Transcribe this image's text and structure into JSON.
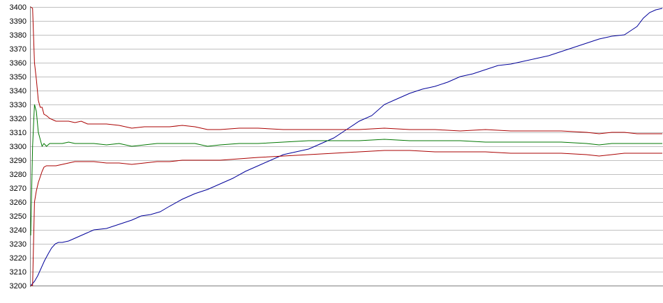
{
  "chart_data": {
    "type": "line",
    "title": "",
    "xlabel": "",
    "ylabel": "",
    "ylim": [
      3200,
      3400
    ],
    "yticks": [
      3200,
      3210,
      3220,
      3230,
      3240,
      3250,
      3260,
      3270,
      3280,
      3290,
      3300,
      3310,
      3320,
      3330,
      3340,
      3350,
      3360,
      3370,
      3380,
      3390,
      3400
    ],
    "y_tick_labels": [
      "3200",
      "3210",
      "3220",
      "3230",
      "3240",
      "3250",
      "3260",
      "3270",
      "3280",
      "3290",
      "3300",
      "3310",
      "3320",
      "3330",
      "3340",
      "3350",
      "3360",
      "3370",
      "3380",
      "3390",
      "3400"
    ],
    "xlim": [
      0,
      100
    ],
    "grid": "horizontal",
    "legend": "none",
    "colors": {
      "background": "#ffffff",
      "gridline": "#c0c0c0",
      "axis": "#808080",
      "blue_line": "#000099",
      "green_line": "#007700",
      "red_lines": "#aa0000"
    },
    "series": [
      {
        "color": "#000099",
        "x": [
          0,
          0.6,
          1.1,
          1.6,
          2.2,
          2.8,
          3.3,
          3.9,
          4.4,
          5,
          6,
          7,
          8,
          9,
          10,
          12,
          14,
          16,
          17.5,
          19,
          20.5,
          22,
          24,
          26,
          28,
          30,
          32,
          34,
          36,
          38,
          40,
          42,
          44,
          46,
          48,
          50,
          52,
          54,
          56,
          58,
          60,
          62,
          64,
          66,
          68,
          70,
          72,
          74,
          76,
          78,
          80,
          82,
          84,
          86,
          88,
          90,
          92,
          94,
          95,
          96,
          97,
          98,
          99,
          100
        ],
        "y": [
          3200,
          3203,
          3207,
          3212,
          3218,
          3223,
          3227,
          3230,
          3231,
          3231,
          3232,
          3234,
          3236,
          3238,
          3240,
          3241,
          3244,
          3247,
          3250,
          3251,
          3253,
          3257,
          3262,
          3266,
          3269,
          3273,
          3277,
          3282,
          3286,
          3290,
          3294,
          3296,
          3298,
          3302,
          3306,
          3312,
          3318,
          3322,
          3330,
          3334,
          3338,
          3341,
          3343,
          3346,
          3350,
          3352,
          3355,
          3358,
          3359,
          3361,
          3363,
          3365,
          3368,
          3371,
          3374,
          3377,
          3379,
          3380,
          3383,
          3386,
          3392,
          3396,
          3398,
          3399
        ]
      },
      {
        "color": "#aa0000",
        "x": [
          0,
          0.3,
          0.6,
          0.9,
          1.2,
          1.5,
          1.8,
          2.1,
          2.5,
          3,
          3.5,
          4,
          5,
          6,
          7,
          8,
          9,
          10,
          12,
          14,
          16,
          18,
          20,
          22,
          24,
          26,
          28,
          30,
          33,
          36,
          40,
          44,
          48,
          52,
          56,
          60,
          64,
          68,
          72,
          76,
          80,
          84,
          88,
          90,
          92,
          94,
          96,
          98,
          100
        ],
        "y": [
          3400,
          3399,
          3360,
          3348,
          3333,
          3328,
          3328,
          3323,
          3322,
          3320,
          3319,
          3318,
          3318,
          3318,
          3317,
          3318,
          3316,
          3316,
          3316,
          3315,
          3313,
          3314,
          3314,
          3314,
          3315,
          3314,
          3312,
          3312,
          3313,
          3313,
          3312,
          3312,
          3312,
          3312,
          3313,
          3312,
          3312,
          3311,
          3312,
          3311,
          3311,
          3311,
          3310,
          3309,
          3310,
          3310,
          3309,
          3309,
          3309
        ]
      },
      {
        "color": "#007700",
        "x": [
          0,
          0.3,
          0.6,
          0.9,
          1.2,
          1.5,
          1.8,
          2.1,
          2.5,
          3,
          3.5,
          4,
          5,
          6,
          7,
          8,
          9,
          10,
          12,
          14,
          16,
          18,
          20,
          22,
          24,
          26,
          28,
          30,
          33,
          36,
          40,
          44,
          48,
          52,
          56,
          60,
          64,
          68,
          72,
          76,
          80,
          84,
          88,
          90,
          92,
          94,
          96,
          98,
          100
        ],
        "y": [
          3236,
          3300,
          3330,
          3325,
          3310,
          3305,
          3300,
          3302,
          3300,
          3302,
          3302,
          3302,
          3302,
          3303,
          3302,
          3302,
          3302,
          3302,
          3301,
          3302,
          3300,
          3301,
          3302,
          3302,
          3302,
          3302,
          3300,
          3301,
          3302,
          3302,
          3303,
          3304,
          3304,
          3304,
          3305,
          3304,
          3304,
          3304,
          3303,
          3303,
          3303,
          3303,
          3302,
          3301,
          3302,
          3302,
          3302,
          3302,
          3302
        ]
      },
      {
        "color": "#aa0000",
        "x": [
          0,
          0.3,
          0.6,
          0.9,
          1.2,
          1.5,
          1.8,
          2.1,
          2.5,
          3,
          3.5,
          4,
          5,
          6,
          7,
          8,
          9,
          10,
          12,
          14,
          16,
          18,
          20,
          22,
          24,
          26,
          28,
          30,
          33,
          36,
          40,
          44,
          48,
          52,
          56,
          60,
          64,
          68,
          72,
          76,
          80,
          84,
          88,
          90,
          92,
          94,
          96,
          98,
          100
        ],
        "y": [
          3200,
          3200,
          3260,
          3268,
          3274,
          3278,
          3282,
          3285,
          3286,
          3286,
          3286,
          3286,
          3287,
          3288,
          3289,
          3289,
          3289,
          3289,
          3288,
          3288,
          3287,
          3288,
          3289,
          3289,
          3290,
          3290,
          3290,
          3290,
          3291,
          3292,
          3293,
          3294,
          3295,
          3296,
          3297,
          3297,
          3296,
          3296,
          3296,
          3295,
          3295,
          3295,
          3294,
          3293,
          3294,
          3295,
          3295,
          3295,
          3295
        ]
      }
    ]
  }
}
